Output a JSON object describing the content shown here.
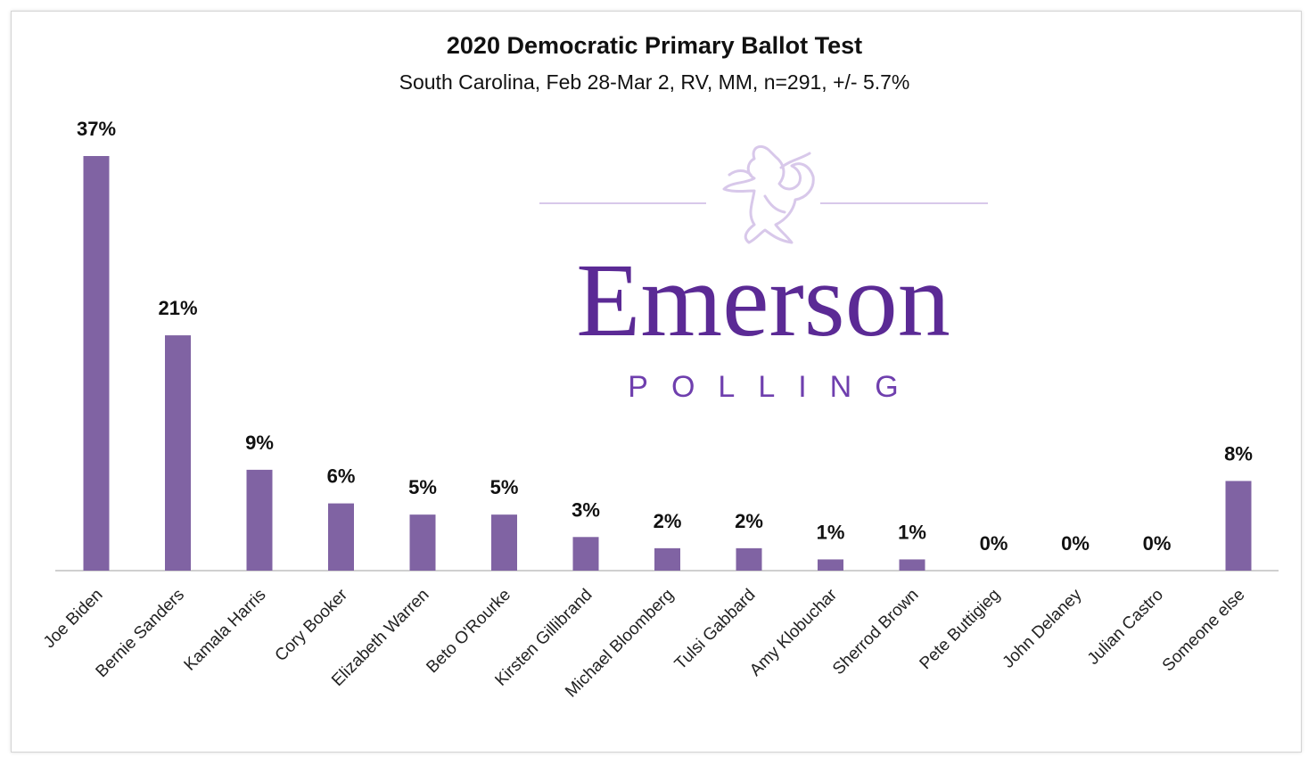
{
  "chart_data": {
    "type": "bar",
    "title": "2020 Democratic Primary Ballot Test",
    "subtitle": "South  Carolina, Feb 28-Mar 2, RV, MM, n=291, +/- 5.7%",
    "categories": [
      "Joe Biden",
      "Bernie Sanders",
      "Kamala Harris",
      "Cory Booker",
      "Elizabeth Warren",
      "Beto O'Rourke",
      "Kirsten Gillibrand",
      "Michael Bloomberg",
      "Tulsi Gabbard",
      "Amy Klobuchar",
      "Sherrod Brown",
      "Pete Buttigieg",
      "John Delaney",
      "Julian Castro",
      "Someone else"
    ],
    "values": [
      37,
      21,
      9,
      6,
      5,
      5,
      3,
      2,
      2,
      1,
      1,
      0,
      0,
      0,
      8
    ],
    "value_labels": [
      "37%",
      "21%",
      "9%",
      "6%",
      "5%",
      "5%",
      "3%",
      "2%",
      "2%",
      "1%",
      "1%",
      "0%",
      "0%",
      "0%",
      "8%"
    ],
    "ylim": [
      0,
      37
    ],
    "grid": false,
    "bar_color": "#8063a3",
    "axis_color": "#d0d0d0"
  },
  "logo": {
    "word": "Emerson",
    "sub": "POLLING",
    "color": "#5b2a95",
    "sub_color": "#6f3fae",
    "crest_color": "#d8c8ea",
    "icon": "lion-rampant-icon"
  }
}
